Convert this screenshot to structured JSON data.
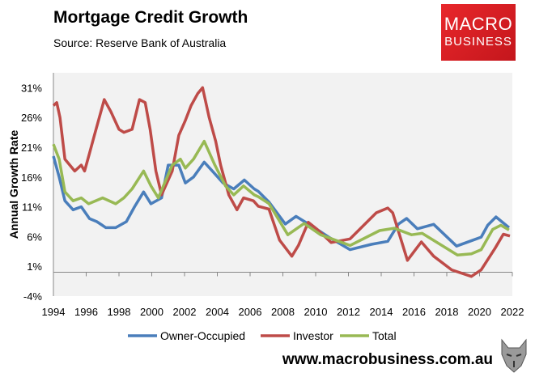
{
  "header": {
    "title": "Mortgage Credit Growth",
    "source": "Source: Reserve Bank of Australia"
  },
  "logo": {
    "line1": "MACRO",
    "line2": "BUSINESS",
    "color": "#d71f26"
  },
  "footer": {
    "url": "www.macrobusiness.com.au",
    "icon": "wolf-icon"
  },
  "chart_data": {
    "type": "line",
    "title": "Mortgage Credit Growth",
    "ylabel": "Annual Growth Rate",
    "xlabel": "",
    "xlim": [
      1994,
      2022
    ],
    "ylim": [
      -4,
      33.5
    ],
    "xticks": [
      "1994",
      "1996",
      "1998",
      "2000",
      "2002",
      "2004",
      "2006",
      "2008",
      "2010",
      "2012",
      "2014",
      "2016",
      "2018",
      "2020",
      "2022"
    ],
    "yticks": [
      "-4%",
      "1%",
      "6%",
      "11%",
      "16%",
      "21%",
      "26%",
      "31%"
    ],
    "ytick_values": [
      -4,
      1,
      6,
      11,
      16,
      21,
      26,
      31
    ],
    "legend": "bottom",
    "grid": false,
    "series": [
      {
        "name": "Owner-Occupied",
        "color": "#4a7ebb",
        "points": [
          [
            1994.0,
            19.5
          ],
          [
            1994.35,
            16
          ],
          [
            1994.7,
            12
          ],
          [
            1995.2,
            10.5
          ],
          [
            1995.7,
            11
          ],
          [
            1996.2,
            9
          ],
          [
            1996.65,
            8.5
          ],
          [
            1997.2,
            7.5
          ],
          [
            1997.8,
            7.5
          ],
          [
            1998.45,
            8.5
          ],
          [
            1998.95,
            11
          ],
          [
            1999.5,
            13.5
          ],
          [
            1999.95,
            11.5
          ],
          [
            2000.6,
            12.5
          ],
          [
            2001.0,
            18
          ],
          [
            2001.65,
            18
          ],
          [
            2002.05,
            15
          ],
          [
            2002.55,
            16
          ],
          [
            2003.2,
            18.5
          ],
          [
            2003.7,
            17
          ],
          [
            2004.35,
            15
          ],
          [
            2005.0,
            14
          ],
          [
            2005.65,
            15.5
          ],
          [
            2006.25,
            14
          ],
          [
            2006.5,
            13.6
          ],
          [
            2007.15,
            11.8
          ],
          [
            2008.15,
            8.1
          ],
          [
            2008.8,
            9.4
          ],
          [
            2009.8,
            7.7
          ],
          [
            2010.8,
            5.9
          ],
          [
            2012.1,
            3.8
          ],
          [
            2013.4,
            4.7
          ],
          [
            2014.4,
            5.2
          ],
          [
            2015.05,
            8.1
          ],
          [
            2015.55,
            9.05
          ],
          [
            2016.2,
            7.3
          ],
          [
            2017.2,
            8.05
          ],
          [
            2018.6,
            4.4
          ],
          [
            2019.6,
            5.4
          ],
          [
            2020.1,
            5.9
          ],
          [
            2020.5,
            7.9
          ],
          [
            2021.0,
            9.3
          ],
          [
            2021.8,
            7.5
          ]
        ]
      },
      {
        "name": "Investor",
        "color": "#be4b48",
        "points": [
          [
            1994.0,
            28
          ],
          [
            1994.2,
            28.5
          ],
          [
            1994.4,
            26
          ],
          [
            1994.7,
            19
          ],
          [
            1995.0,
            18
          ],
          [
            1995.3,
            17
          ],
          [
            1995.7,
            18
          ],
          [
            1995.9,
            17
          ],
          [
            1996.2,
            20
          ],
          [
            1996.5,
            23
          ],
          [
            1997.1,
            29
          ],
          [
            1997.5,
            27
          ],
          [
            1998.0,
            24
          ],
          [
            1998.3,
            23.5
          ],
          [
            1998.8,
            24
          ],
          [
            1999.25,
            29
          ],
          [
            1999.6,
            28.5
          ],
          [
            1999.9,
            24
          ],
          [
            2000.25,
            17
          ],
          [
            2000.6,
            13
          ],
          [
            2001.25,
            17
          ],
          [
            2001.65,
            23
          ],
          [
            2002.05,
            25.5
          ],
          [
            2002.4,
            28
          ],
          [
            2002.8,
            30
          ],
          [
            2003.1,
            31
          ],
          [
            2003.5,
            26
          ],
          [
            2003.9,
            22
          ],
          [
            2004.2,
            18
          ],
          [
            2004.7,
            13
          ],
          [
            2005.2,
            10.5
          ],
          [
            2005.6,
            12.5
          ],
          [
            2006.2,
            12
          ],
          [
            2006.5,
            11.1
          ],
          [
            2007.15,
            10.6
          ],
          [
            2007.8,
            5.4
          ],
          [
            2008.55,
            2.7
          ],
          [
            2008.95,
            4.5
          ],
          [
            2009.55,
            8.4
          ],
          [
            2010.1,
            7.2
          ],
          [
            2010.95,
            5.0
          ],
          [
            2012.1,
            5.6
          ],
          [
            2013.7,
            10.0
          ],
          [
            2014.4,
            10.8
          ],
          [
            2014.7,
            10.0
          ],
          [
            2015.6,
            2.0
          ],
          [
            2016.45,
            5.1
          ],
          [
            2017.2,
            2.7
          ],
          [
            2018.3,
            0.4
          ],
          [
            2019.5,
            -0.7
          ],
          [
            2020.1,
            0.4
          ],
          [
            2020.95,
            4.05
          ],
          [
            2021.45,
            6.4
          ],
          [
            2021.85,
            6.1
          ]
        ]
      },
      {
        "name": "Total",
        "color": "#98b954",
        "points": [
          [
            1994.0,
            21.5
          ],
          [
            1994.35,
            19
          ],
          [
            1994.7,
            13.5
          ],
          [
            1995.2,
            12
          ],
          [
            1995.7,
            12.5
          ],
          [
            1996.15,
            11.5
          ],
          [
            1997.0,
            12.5
          ],
          [
            1997.8,
            11.5
          ],
          [
            1998.3,
            12.5
          ],
          [
            1998.8,
            14
          ],
          [
            1999.5,
            17
          ],
          [
            1999.95,
            14.5
          ],
          [
            2000.4,
            12.5
          ],
          [
            2001.25,
            18
          ],
          [
            2001.75,
            19
          ],
          [
            2002.05,
            17.5
          ],
          [
            2002.55,
            19
          ],
          [
            2003.2,
            22
          ],
          [
            2003.85,
            18
          ],
          [
            2004.5,
            14.5
          ],
          [
            2005.0,
            13
          ],
          [
            2005.6,
            14.5
          ],
          [
            2006.25,
            13
          ],
          [
            2006.5,
            12.7
          ],
          [
            2007.15,
            11.55
          ],
          [
            2008.3,
            6.3
          ],
          [
            2009.3,
            8.2
          ],
          [
            2010.3,
            6.3
          ],
          [
            2012.1,
            4.5
          ],
          [
            2013.9,
            7.0
          ],
          [
            2014.8,
            7.4
          ],
          [
            2015.85,
            6.3
          ],
          [
            2016.5,
            6.55
          ],
          [
            2018.65,
            2.9
          ],
          [
            2019.5,
            3.1
          ],
          [
            2020.1,
            3.8
          ],
          [
            2020.8,
            7.2
          ],
          [
            2021.3,
            7.9
          ],
          [
            2021.8,
            7.1
          ]
        ]
      }
    ]
  }
}
